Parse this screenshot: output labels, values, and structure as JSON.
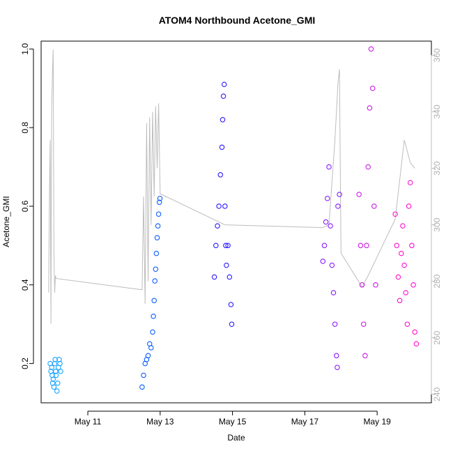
{
  "chart_data": {
    "type": "scatter",
    "title": "ATOM4 Northbound Acetone_GMI",
    "xlabel": "Date",
    "ylabel": "Acetone_GMI",
    "x_ticks": [
      "May 11",
      "May 13",
      "May 15",
      "May 17",
      "May 19"
    ],
    "y_ticks": [
      "0.2",
      "0.4",
      "0.6",
      "0.8",
      "1.0"
    ],
    "y_right_ticks": [
      "240",
      "260",
      "280",
      "300",
      "320",
      "340",
      "360"
    ],
    "xlim": [
      "2018-05-09T17:00",
      "2018-05-20T12:00"
    ],
    "ylim": [
      0.1,
      1.02
    ],
    "ylim_right": [
      237,
      365
    ],
    "grid": false,
    "colors": {
      "secondary_line": "#bdbdbd",
      "right_axis": "#bdbdbd"
    },
    "series": [
      {
        "color": "#1aa3ff",
        "points": [
          [
            "2018-05-09T23:00",
            0.2
          ],
          [
            "2018-05-09T23:30",
            0.18
          ],
          [
            "2018-05-10T00:00",
            0.19
          ],
          [
            "2018-05-10T00:20",
            0.17
          ],
          [
            "2018-05-10T00:40",
            0.15
          ],
          [
            "2018-05-10T01:00",
            0.16
          ],
          [
            "2018-05-10T01:30",
            0.14
          ],
          [
            "2018-05-10T02:00",
            0.2
          ],
          [
            "2018-05-10T02:20",
            0.21
          ],
          [
            "2018-05-10T02:40",
            0.18
          ],
          [
            "2018-05-10T03:00",
            0.17
          ],
          [
            "2018-05-10T03:30",
            0.13
          ],
          [
            "2018-05-10T04:00",
            0.15
          ],
          [
            "2018-05-10T04:30",
            0.19
          ],
          [
            "2018-05-10T05:00",
            0.21
          ],
          [
            "2018-05-10T05:30",
            0.2
          ],
          [
            "2018-05-10T06:00",
            0.18
          ]
        ]
      },
      {
        "color": "#0a5cff",
        "points": [
          [
            "2018-05-12T12:00",
            0.14
          ],
          [
            "2018-05-12T13:00",
            0.17
          ],
          [
            "2018-05-12T14:00",
            0.2
          ],
          [
            "2018-05-12T15:00",
            0.21
          ],
          [
            "2018-05-12T16:00",
            0.22
          ],
          [
            "2018-05-12T17:00",
            0.25
          ],
          [
            "2018-05-12T18:00",
            0.24
          ],
          [
            "2018-05-12T19:00",
            0.28
          ],
          [
            "2018-05-12T19:30",
            0.32
          ],
          [
            "2018-05-12T20:00",
            0.36
          ],
          [
            "2018-05-12T20:30",
            0.41
          ],
          [
            "2018-05-12T21:00",
            0.44
          ],
          [
            "2018-05-12T21:30",
            0.48
          ],
          [
            "2018-05-12T22:00",
            0.52
          ],
          [
            "2018-05-12T22:30",
            0.55
          ],
          [
            "2018-05-12T23:00",
            0.58
          ],
          [
            "2018-05-12T23:30",
            0.61
          ],
          [
            "2018-05-12T23:50",
            0.62
          ]
        ]
      },
      {
        "color": "#2a1aff",
        "points": [
          [
            "2018-05-14T12:00",
            0.42
          ],
          [
            "2018-05-14T13:00",
            0.5
          ],
          [
            "2018-05-14T14:00",
            0.55
          ],
          [
            "2018-05-14T15:00",
            0.6
          ],
          [
            "2018-05-14T16:00",
            0.68
          ],
          [
            "2018-05-14T17:00",
            0.75
          ],
          [
            "2018-05-14T17:30",
            0.82
          ],
          [
            "2018-05-14T18:00",
            0.88
          ],
          [
            "2018-05-14T18:30",
            0.91
          ],
          [
            "2018-05-14T19:00",
            0.6
          ],
          [
            "2018-05-14T19:30",
            0.5
          ],
          [
            "2018-05-14T20:00",
            0.45
          ],
          [
            "2018-05-14T21:00",
            0.5
          ],
          [
            "2018-05-14T22:00",
            0.42
          ],
          [
            "2018-05-14T23:00",
            0.35
          ],
          [
            "2018-05-14T23:30",
            0.3
          ]
        ]
      },
      {
        "color": "#8a1aff",
        "points": [
          [
            "2018-05-17T12:00",
            0.46
          ],
          [
            "2018-05-17T13:00",
            0.5
          ],
          [
            "2018-05-17T14:00",
            0.56
          ],
          [
            "2018-05-17T15:00",
            0.62
          ],
          [
            "2018-05-17T16:00",
            0.7
          ],
          [
            "2018-05-17T17:00",
            0.55
          ],
          [
            "2018-05-17T18:00",
            0.45
          ],
          [
            "2018-05-17T19:00",
            0.38
          ],
          [
            "2018-05-17T20:00",
            0.3
          ],
          [
            "2018-05-17T21:00",
            0.22
          ],
          [
            "2018-05-17T21:30",
            0.19
          ],
          [
            "2018-05-17T22:00",
            0.6
          ],
          [
            "2018-05-17T23:00",
            0.63
          ]
        ]
      },
      {
        "color": "#cc1ae6",
        "points": [
          [
            "2018-05-18T12:00",
            0.63
          ],
          [
            "2018-05-18T13:00",
            0.5
          ],
          [
            "2018-05-18T14:00",
            0.4
          ],
          [
            "2018-05-18T15:00",
            0.3
          ],
          [
            "2018-05-18T16:00",
            0.22
          ],
          [
            "2018-05-18T17:00",
            0.5
          ],
          [
            "2018-05-18T18:00",
            0.7
          ],
          [
            "2018-05-18T19:00",
            0.85
          ],
          [
            "2018-05-18T20:00",
            1.0
          ],
          [
            "2018-05-18T21:00",
            0.9
          ],
          [
            "2018-05-18T22:00",
            0.6
          ],
          [
            "2018-05-18T23:00",
            0.4
          ]
        ]
      },
      {
        "color": "#ff0fcf",
        "points": [
          [
            "2018-05-19T12:00",
            0.58
          ],
          [
            "2018-05-19T13:00",
            0.5
          ],
          [
            "2018-05-19T14:00",
            0.42
          ],
          [
            "2018-05-19T15:00",
            0.36
          ],
          [
            "2018-05-19T16:00",
            0.48
          ],
          [
            "2018-05-19T17:00",
            0.55
          ],
          [
            "2018-05-19T18:00",
            0.45
          ],
          [
            "2018-05-19T19:00",
            0.38
          ],
          [
            "2018-05-19T20:00",
            0.3
          ],
          [
            "2018-05-19T21:00",
            0.6
          ],
          [
            "2018-05-19T22:00",
            0.66
          ],
          [
            "2018-05-19T23:00",
            0.5
          ],
          [
            "2018-05-20T00:00",
            0.4
          ],
          [
            "2018-05-20T01:00",
            0.28
          ],
          [
            "2018-05-20T02:00",
            0.25
          ]
        ]
      }
    ],
    "secondary_line": {
      "axis": "right",
      "points": [
        [
          "2018-05-09T22:00",
          276
        ],
        [
          "2018-05-09T22:30",
          310
        ],
        [
          "2018-05-09T23:00",
          330
        ],
        [
          "2018-05-09T23:30",
          265
        ],
        [
          "2018-05-10T00:00",
          340
        ],
        [
          "2018-05-10T00:30",
          353
        ],
        [
          "2018-05-10T01:00",
          362
        ],
        [
          "2018-05-10T01:30",
          290
        ],
        [
          "2018-05-10T02:00",
          276
        ],
        [
          "2018-05-10T02:30",
          282
        ],
        [
          "2018-05-10T03:00",
          281
        ],
        [
          "2018-05-12T12:00",
          277
        ],
        [
          "2018-05-12T13:00",
          310
        ],
        [
          "2018-05-12T14:00",
          272
        ],
        [
          "2018-05-12T15:00",
          336
        ],
        [
          "2018-05-12T16:00",
          280
        ],
        [
          "2018-05-12T17:00",
          338
        ],
        [
          "2018-05-12T18:00",
          300
        ],
        [
          "2018-05-12T19:00",
          340
        ],
        [
          "2018-05-12T20:00",
          310
        ],
        [
          "2018-05-12T21:00",
          342
        ],
        [
          "2018-05-12T22:00",
          320
        ],
        [
          "2018-05-12T23:00",
          343
        ],
        [
          "2018-05-13T00:00",
          311
        ],
        [
          "2018-05-14T19:00",
          300
        ],
        [
          "2018-05-17T12:00",
          299
        ],
        [
          "2018-05-17T16:00",
          300
        ],
        [
          "2018-05-17T18:00",
          315
        ],
        [
          "2018-05-17T20:00",
          330
        ],
        [
          "2018-05-17T22:00",
          350
        ],
        [
          "2018-05-17T23:00",
          355
        ],
        [
          "2018-05-18T00:00",
          290
        ],
        [
          "2018-05-18T14:00",
          278
        ],
        [
          "2018-05-18T18:00",
          282
        ],
        [
          "2018-05-19T12:00",
          302
        ],
        [
          "2018-05-19T18:00",
          330
        ],
        [
          "2018-05-19T22:00",
          322
        ],
        [
          "2018-05-20T01:00",
          320
        ]
      ]
    }
  }
}
